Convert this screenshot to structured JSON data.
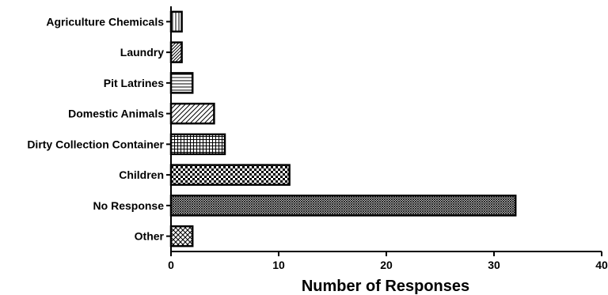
{
  "chart_data": {
    "type": "bar",
    "orientation": "horizontal",
    "categories": [
      "Agriculture Chemicals",
      "Laundry",
      "Pit Latrines",
      "Domestic Animals",
      "Dirty Collection Container",
      "Children",
      "No Response",
      "Other"
    ],
    "values": [
      1,
      1,
      2,
      4,
      5,
      11,
      32,
      2
    ],
    "patterns": [
      "vertical-lines",
      "diagonal-dense",
      "horizontal-lines",
      "diagonal-lines",
      "grid",
      "checkerboard",
      "fine-crosshatch",
      "diagonal-crosshatch"
    ],
    "xlabel": "Number of Responses",
    "ylabel": "",
    "xlim": [
      0,
      40
    ],
    "xticks": [
      0,
      10,
      20,
      30,
      40
    ],
    "grid": false,
    "bar_fill": "#ffffff",
    "bar_stroke": "#000000"
  }
}
